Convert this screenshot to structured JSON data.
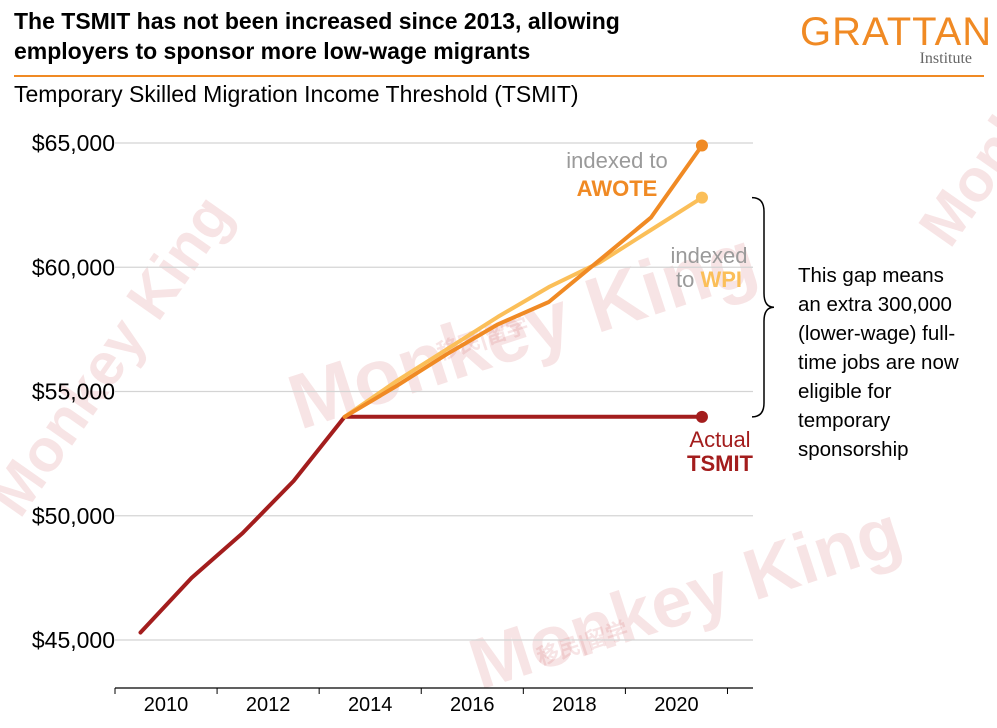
{
  "header": {
    "title_lines": [
      "The TSMIT has not been increased since 2013, allowing",
      "employers to sponsor more low-wage migrants"
    ],
    "subtitle": "Temporary Skilled Migration Income Threshold (TSMIT)",
    "brand_color": "#f08a24"
  },
  "logo": {
    "main": "GRATTAN",
    "sub": "Institute"
  },
  "watermark": {
    "text": "Monkey King",
    "cjk": "移民|留学"
  },
  "chart_data": {
    "type": "line",
    "title": "Temporary Skilled Migration Income Threshold (TSMIT)",
    "xlabel": "",
    "ylabel": "",
    "xlim": [
      2009,
      2021.5
    ],
    "ylim": [
      44000,
      65000
    ],
    "x_ticks": [
      2010,
      2012,
      2014,
      2016,
      2018,
      2020
    ],
    "x_tick_labels": [
      "2010",
      "2012",
      "2014",
      "2016",
      "2018",
      "2020"
    ],
    "y_ticks": [
      45000,
      50000,
      55000,
      60000,
      65000
    ],
    "y_tick_labels": [
      "$45,000",
      "$50,000",
      "$55,000",
      "$60,000",
      "$65,000"
    ],
    "grid": "horizontal",
    "series": [
      {
        "key": "tsmit",
        "name_lines": [
          "Actual",
          "TSMIT"
        ],
        "color": "#a31d1d",
        "end_marker": true,
        "x": [
          2009.5,
          2010.5,
          2011.5,
          2012.5,
          2013.5,
          2014.5,
          2015.5,
          2016.5,
          2017.5,
          2018.5,
          2019.5,
          2020.5
        ],
        "y": [
          45300,
          47500,
          49300,
          51400,
          53980,
          53980,
          53980,
          53980,
          53980,
          53980,
          53980,
          53980
        ]
      },
      {
        "key": "awote",
        "name_lines": [
          "indexed to",
          "AWOTE"
        ],
        "color": "#f08a24",
        "end_marker": true,
        "x": [
          2013.5,
          2014.5,
          2015.5,
          2016.5,
          2017.5,
          2018.5,
          2019.5,
          2020.5
        ],
        "y": [
          53980,
          55200,
          56500,
          57700,
          58600,
          60300,
          62000,
          64900
        ]
      },
      {
        "key": "wpi",
        "name_lines": [
          "indexed",
          "to WPI"
        ],
        "color": "#fbbf59",
        "end_marker": true,
        "x": [
          2013.5,
          2014.5,
          2015.5,
          2016.5,
          2017.5,
          2018.5,
          2019.5,
          2020.5
        ],
        "y": [
          53980,
          55400,
          56700,
          58000,
          59200,
          60200,
          61500,
          62800
        ]
      }
    ],
    "annotation": {
      "lines": [
        "This gap means",
        "an extra 300,000",
        "(lower-wage) full-",
        "time jobs are now",
        "eligible for",
        "temporary",
        "sponsorship"
      ]
    }
  }
}
